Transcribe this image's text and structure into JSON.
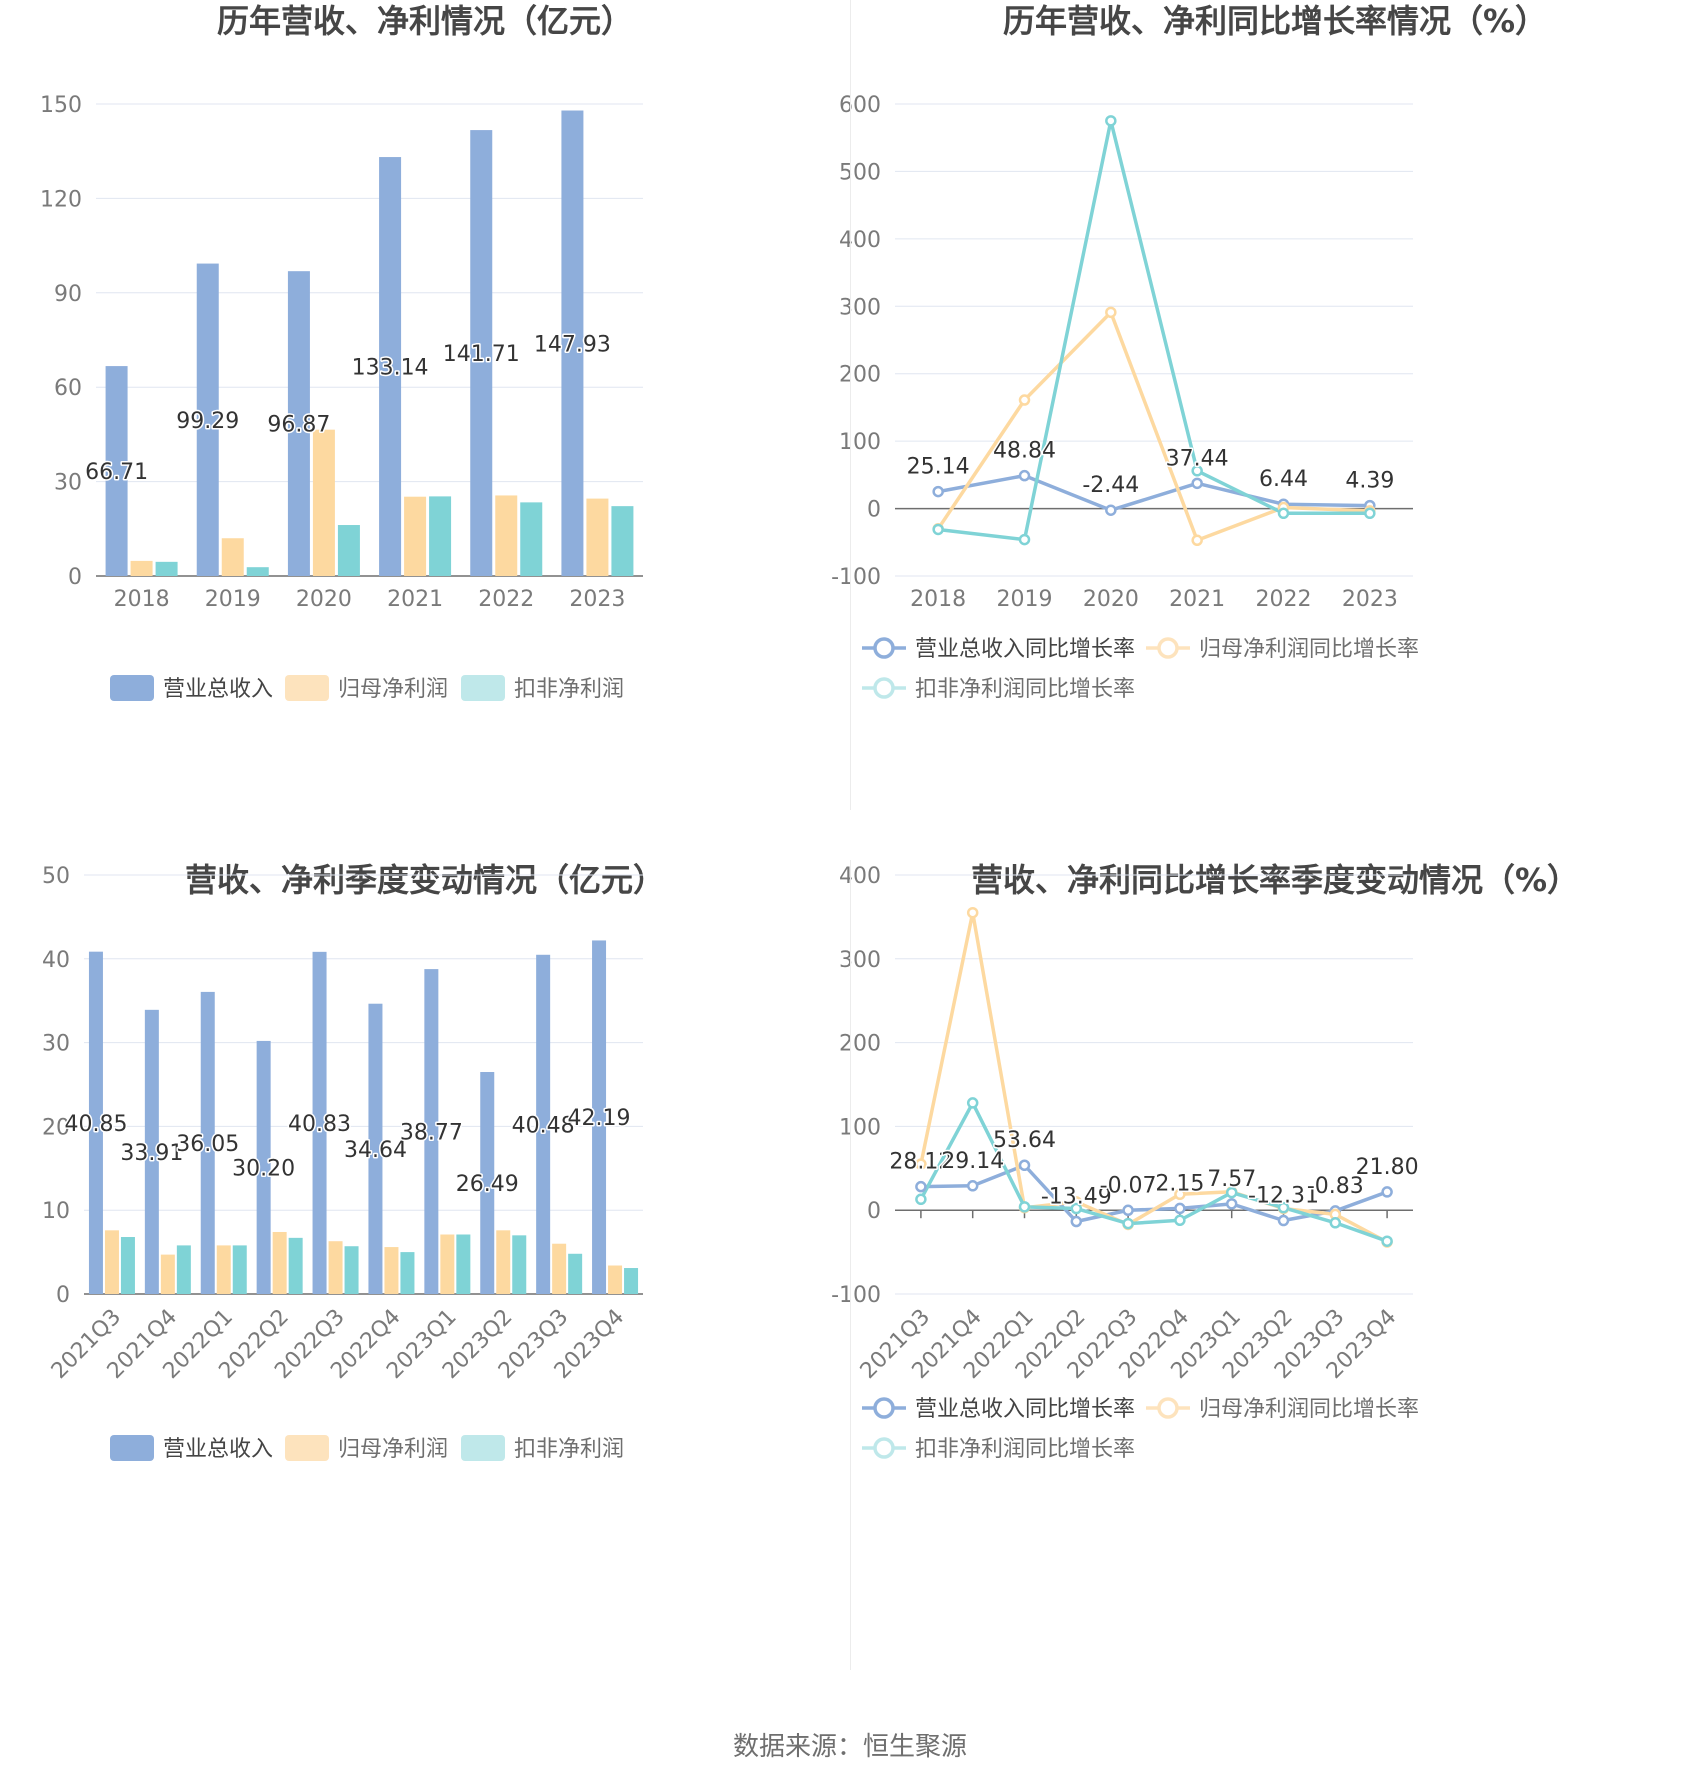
{
  "source": "数据来源：恒生聚源",
  "colors": {
    "revenue": "#8eaedb",
    "net_profit": "#fdd9a0",
    "deducted_net_profit": "#7fd3d6"
  },
  "chart_data": [
    {
      "type": "bar",
      "title": "历年营收、净利情况（亿元）",
      "categories": [
        "2018",
        "2019",
        "2020",
        "2021",
        "2022",
        "2023"
      ],
      "ylim": [
        0,
        150
      ],
      "yticks": [
        "0",
        "30",
        "60",
        "90",
        "120",
        "150"
      ],
      "legend_position": "bottom",
      "grid": true,
      "series": [
        {
          "name": "营业总收入",
          "values": [
            66.71,
            99.29,
            96.87,
            133.14,
            141.71,
            147.93
          ],
          "labels": [
            "66.71",
            "99.29",
            "96.87",
            "133.14",
            "141.71",
            "147.93"
          ]
        },
        {
          "name": "归母净利润",
          "values": [
            4.8,
            12.0,
            46.5,
            25.2,
            25.6,
            24.6
          ]
        },
        {
          "name": "扣非净利润",
          "values": [
            4.5,
            2.8,
            16.2,
            25.3,
            23.4,
            22.2
          ]
        }
      ]
    },
    {
      "type": "line",
      "title": "历年营收、净利同比增长率情况（%）",
      "categories": [
        "2018",
        "2019",
        "2020",
        "2021",
        "2022",
        "2023"
      ],
      "ylim": [
        -100,
        600
      ],
      "yticks": [
        "-100",
        "0",
        "100",
        "200",
        "300",
        "400",
        "500",
        "600"
      ],
      "legend_position": "bottom",
      "grid": true,
      "series": [
        {
          "name": "营业总收入同比增长率",
          "values": [
            25.14,
            48.84,
            -2.44,
            37.44,
            6.44,
            4.39
          ],
          "labels": [
            "25.14",
            "48.84",
            "-2.44",
            "37.44",
            "6.44",
            "4.39"
          ]
        },
        {
          "name": "归母净利润同比增长率",
          "values": [
            -30,
            161,
            291,
            -47,
            1.5,
            -3.5
          ]
        },
        {
          "name": "扣非净利润同比增长率",
          "values": [
            -31,
            -46,
            575,
            56,
            -7,
            -7
          ]
        }
      ]
    },
    {
      "type": "bar",
      "title": "营收、净利季度变动情况（亿元）",
      "categories": [
        "2021Q3",
        "2021Q4",
        "2022Q1",
        "2022Q2",
        "2022Q3",
        "2022Q4",
        "2023Q1",
        "2023Q2",
        "2023Q3",
        "2023Q4"
      ],
      "ylim": [
        0,
        50
      ],
      "yticks": [
        "0",
        "10",
        "20",
        "30",
        "40",
        "50"
      ],
      "legend_position": "bottom",
      "grid": true,
      "series": [
        {
          "name": "营业总收入",
          "values": [
            40.85,
            33.91,
            36.05,
            30.2,
            40.83,
            34.64,
            38.77,
            26.49,
            40.48,
            42.19
          ],
          "labels": [
            "40.85",
            "33.91",
            "36.05",
            "30.20",
            "40.83",
            "34.64",
            "38.77",
            "26.49",
            "40.48",
            "42.19"
          ]
        },
        {
          "name": "归母净利润",
          "values": [
            7.6,
            4.7,
            5.8,
            7.4,
            6.3,
            5.6,
            7.1,
            7.6,
            6.0,
            3.4
          ]
        },
        {
          "name": "扣非净利润",
          "values": [
            6.8,
            5.8,
            5.8,
            6.7,
            5.7,
            5.0,
            7.1,
            7.0,
            4.8,
            3.1
          ]
        }
      ]
    },
    {
      "type": "line",
      "title": "营收、净利同比增长率季度变动情况（%）",
      "categories": [
        "2021Q3",
        "2021Q4",
        "2022Q1",
        "2022Q2",
        "2022Q3",
        "2022Q4",
        "2023Q1",
        "2023Q2",
        "2023Q3",
        "2023Q4"
      ],
      "ylim": [
        -100,
        400
      ],
      "yticks": [
        "-100",
        "0",
        "100",
        "200",
        "300",
        "400"
      ],
      "legend_position": "bottom",
      "grid": true,
      "series": [
        {
          "name": "营业总收入同比增长率",
          "values": [
            28.12,
            29.14,
            53.64,
            -13.49,
            -0.07,
            2.15,
            7.57,
            -12.31,
            -0.83,
            21.8
          ],
          "labels": [
            "28.12",
            "29.14",
            "53.64",
            "-13.49",
            "-0.07",
            "2.15",
            "7.57",
            "-12.31",
            "-0.83",
            "21.80"
          ]
        },
        {
          "name": "归母净利润同比增长率",
          "values": [
            55,
            355,
            3,
            10,
            -17,
            19,
            22,
            2,
            -5,
            -38
          ]
        },
        {
          "name": "扣非净利润同比增长率",
          "values": [
            13,
            128,
            4,
            2,
            -16,
            -12,
            21,
            3,
            -15,
            -37
          ]
        }
      ]
    }
  ]
}
